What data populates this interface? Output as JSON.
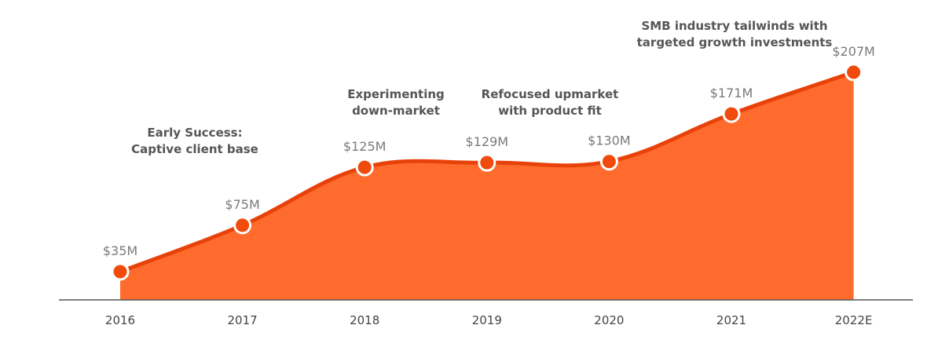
{
  "chart_data": {
    "type": "area",
    "categories": [
      "2016",
      "2017",
      "2018",
      "2019",
      "2020",
      "2021",
      "2022E"
    ],
    "series": [
      {
        "values": [
          35,
          75,
          125,
          129,
          130,
          171,
          207
        ],
        "labels": [
          "$35M",
          "$75M",
          "$125M",
          "$129M",
          "$130M",
          "$171M",
          "$207M"
        ]
      }
    ],
    "annotations": [
      {
        "lines": [
          "Early Success:",
          "Captive client base"
        ]
      },
      {
        "lines": [
          "Experimenting",
          "down-market"
        ]
      },
      {
        "lines": [
          "Refocused upmarket",
          "with product fit"
        ]
      },
      {
        "lines": [
          "SMB industry tailwinds with",
          "targeted growth investments"
        ]
      }
    ],
    "colors": {
      "fill": "#FF6B2C",
      "line": "#E8420A",
      "marker": "#F04A0C",
      "marker_stroke": "#ffffff",
      "axis": "#555555"
    },
    "grid": false
  }
}
